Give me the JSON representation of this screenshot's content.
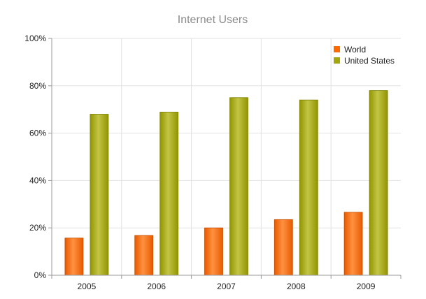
{
  "chart_data": {
    "type": "bar",
    "title": "Internet Users",
    "xlabel": "",
    "ylabel": "",
    "categories": [
      "2005",
      "2006",
      "2007",
      "2008",
      "2009"
    ],
    "series": [
      {
        "name": "World",
        "values": [
          15.7,
          16.8,
          20.0,
          23.5,
          26.6
        ],
        "color": "#ff6a00"
      },
      {
        "name": "United States",
        "values": [
          68.0,
          68.9,
          75.0,
          74.0,
          78.0
        ],
        "color": "#a3a60d"
      }
    ],
    "ylim": [
      0,
      100
    ],
    "yticks": [
      "0%",
      "20%",
      "40%",
      "60%",
      "80%",
      "100%"
    ],
    "grid": true,
    "legend_position": "top-right"
  }
}
